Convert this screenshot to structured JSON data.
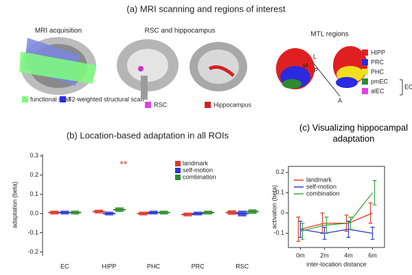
{
  "panel_a": {
    "title": "(a) MRI scanning and regions of interest",
    "mri_acquisition": {
      "title": "MRI acquisition",
      "legend": [
        "functional scan",
        "T2-weighted structural scan"
      ]
    },
    "rsc_hippocampus": {
      "title": "RSC and hippocampus",
      "legend": [
        "RSC",
        "Hippocampus"
      ]
    },
    "mtl_regions": {
      "title": "MTL regions",
      "legend": [
        "HIPP",
        "PRC",
        "PHC",
        "pmEC",
        "alEC"
      ],
      "group": "EC",
      "axes": [
        "L",
        "M",
        "P",
        "A"
      ]
    }
  },
  "chart_data": [
    {
      "type": "bar",
      "title": "(b) Location-based adaptation in all ROIs",
      "y_label": "adaptation (beta)",
      "categories": [
        "EC",
        "HIPP",
        "PHC",
        "PRC",
        "RSC"
      ],
      "series": [
        {
          "name": "landmark",
          "color": "#d93a2b",
          "values": [
            0.005,
            0.01,
            0.0,
            -0.005,
            0.005
          ],
          "errors": [
            0.01,
            0.01,
            0.01,
            0.01,
            0.012
          ]
        },
        {
          "name": "self-motion",
          "color": "#2a3bd6",
          "values": [
            0.005,
            0.0,
            0.005,
            0.0,
            0.0
          ],
          "errors": [
            0.01,
            0.01,
            0.01,
            0.01,
            0.015
          ]
        },
        {
          "name": "combination",
          "color": "#2e8b2e",
          "values": [
            0.005,
            0.02,
            0.005,
            0.005,
            0.01
          ],
          "errors": [
            0.01,
            0.012,
            0.01,
            0.01,
            0.012
          ]
        }
      ],
      "annotation": "**",
      "ylim": [
        -0.22,
        0.31
      ],
      "yticks": [
        -0.2,
        -0.1,
        {
          "value": 0,
          "label": "0.0"
        },
        0.1,
        0.2,
        0.3
      ]
    },
    {
      "type": "line",
      "title": "(c) Visualizing hippocampal adaptation",
      "y_label": "activation (beta)",
      "x_label": "inter-location distance",
      "categories": [
        "0m",
        "2m",
        "4m",
        "6m"
      ],
      "series": [
        {
          "name": "landmark",
          "color": "#e03c2c",
          "values": [
            -0.08,
            -0.05,
            -0.05,
            0.0
          ],
          "errors": [
            0.06,
            0.05,
            0.04,
            0.05
          ]
        },
        {
          "name": "self-motion",
          "color": "#2a3bd6",
          "values": [
            -0.08,
            -0.1,
            -0.08,
            -0.1
          ],
          "errors": [
            0.04,
            0.03,
            0.04,
            0.03
          ]
        },
        {
          "name": "combination",
          "color": "#3aa63a",
          "values": [
            -0.09,
            -0.06,
            -0.05,
            0.1
          ],
          "errors": [
            0.04,
            0.04,
            0.03,
            0.06
          ]
        }
      ],
      "ylim": [
        -0.17,
        0.23
      ],
      "yticks": [
        -0.1,
        0,
        0.1,
        0.2
      ]
    }
  ]
}
